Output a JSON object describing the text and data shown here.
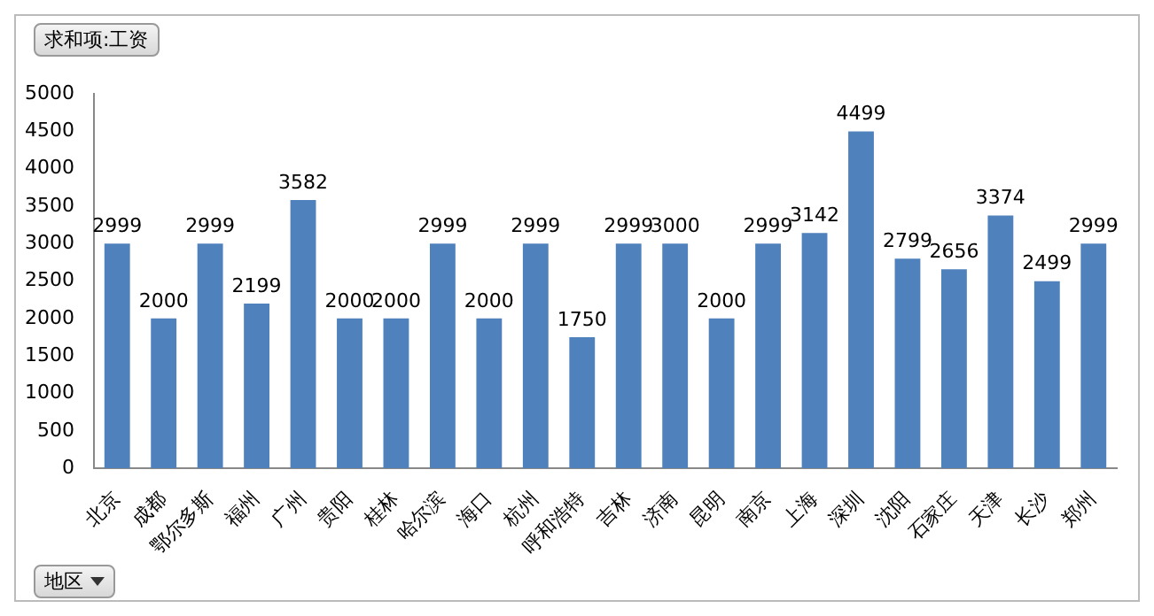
{
  "chart_data": {
    "type": "bar",
    "title": "求和项:工资",
    "xlabel": "地区",
    "categories": [
      "北京",
      "成都",
      "鄂尔多斯",
      "福州",
      "广州",
      "贵阳",
      "桂林",
      "哈尔滨",
      "海口",
      "杭州",
      "呼和浩特",
      "吉林",
      "济南",
      "昆明",
      "南京",
      "上海",
      "深圳",
      "沈阳",
      "石家庄",
      "天津",
      "长沙",
      "郑州"
    ],
    "values": [
      2999,
      2000,
      2999,
      2199,
      3582,
      2000,
      2000,
      2999,
      2000,
      2999,
      1750,
      2999,
      3000,
      2000,
      2999,
      3142,
      4499,
      2799,
      2656,
      3374,
      2499,
      2999
    ],
    "color": "#4f81bd",
    "ylim": [
      0,
      5000
    ],
    "yticks": [
      0,
      500,
      1000,
      1500,
      2000,
      2500,
      3000,
      3500,
      4000,
      4500,
      5000
    ],
    "grid": false,
    "legend": false,
    "data_labels": true
  }
}
